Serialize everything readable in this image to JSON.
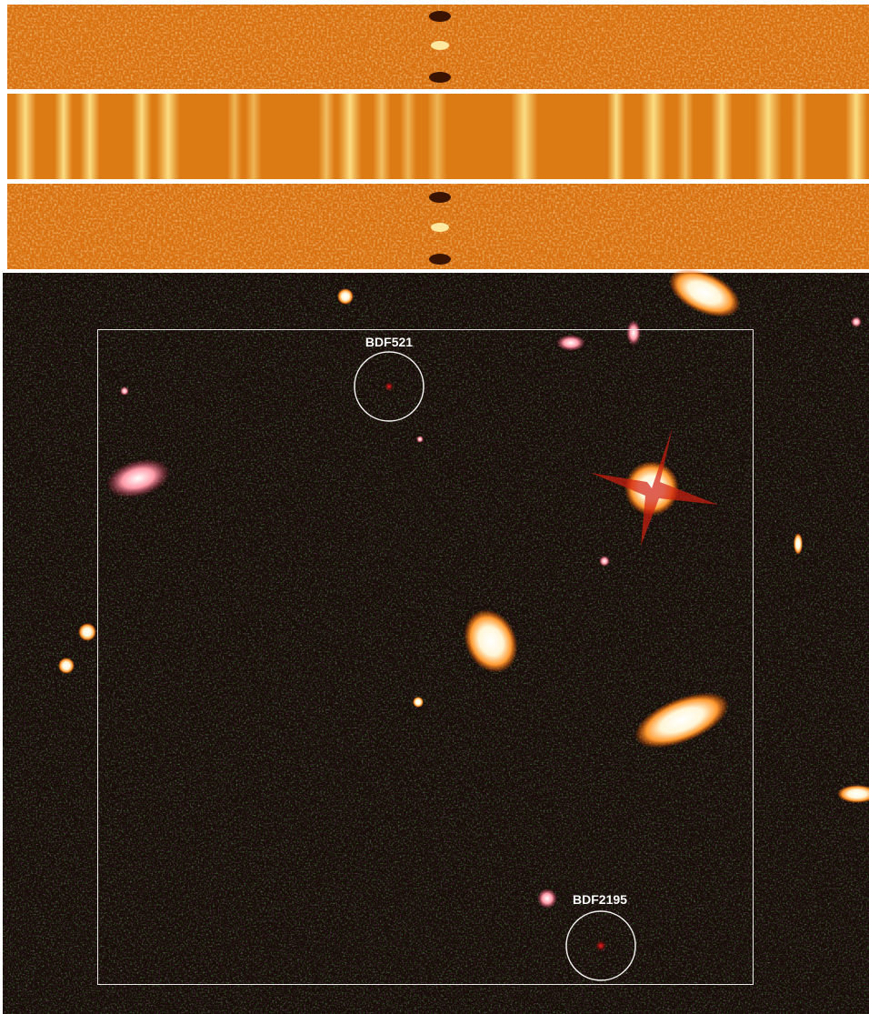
{
  "image": {
    "targets": [
      {
        "label": "BDF521"
      },
      {
        "label": "BDF2195"
      }
    ]
  }
}
